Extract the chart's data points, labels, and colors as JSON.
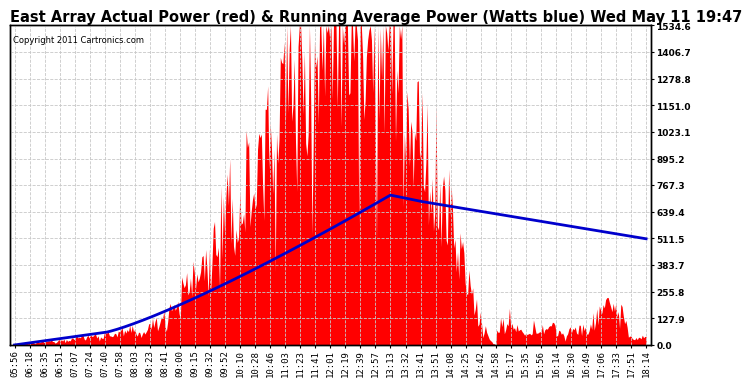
{
  "title": "East Array Actual Power (red) & Running Average Power (Watts blue) Wed May 11 19:47",
  "copyright": "Copyright 2011 Cartronics.com",
  "ylabel_right_ticks": [
    0.0,
    127.9,
    255.8,
    383.7,
    511.5,
    639.4,
    767.3,
    895.2,
    1023.1,
    1151.0,
    1278.8,
    1406.7,
    1534.6
  ],
  "ymax": 1534.6,
  "ymin": 0.0,
  "background_color": "#ffffff",
  "plot_bg_color": "#ffffff",
  "grid_color": "#c8c8c8",
  "actual_color": "#ff0000",
  "average_color": "#0000cc",
  "title_fontsize": 10.5,
  "tick_label_fontsize": 6.5
}
